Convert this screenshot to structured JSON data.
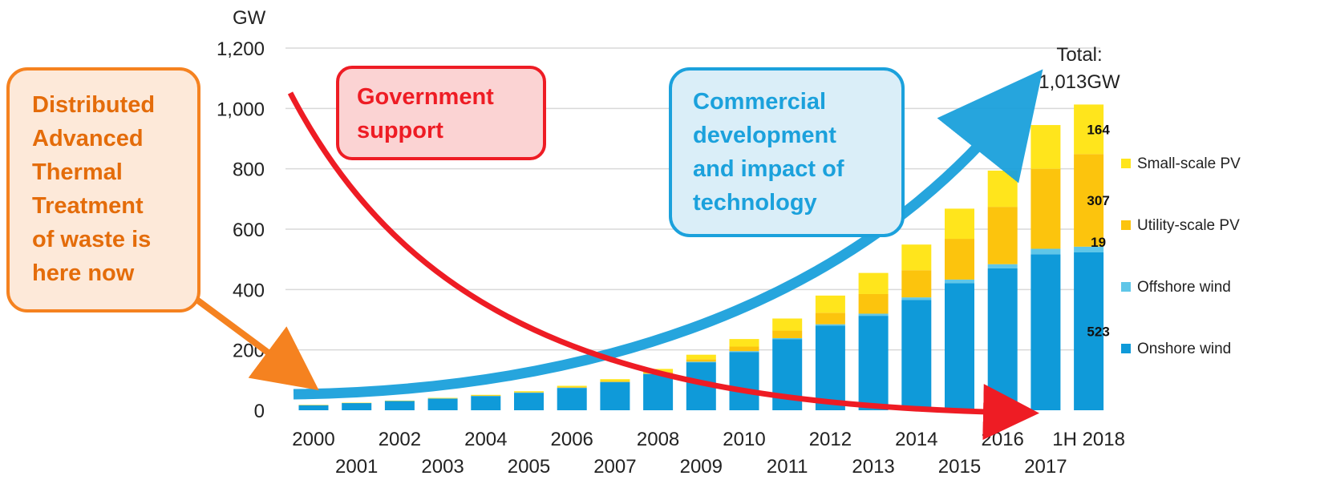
{
  "chart_data": {
    "type": "bar",
    "stacked": true,
    "unit_label": "GW",
    "ylim": [
      0,
      1200
    ],
    "yticks": [
      {
        "value": 0,
        "label": "0"
      },
      {
        "value": 200,
        "label": "200"
      },
      {
        "value": 400,
        "label": "400"
      },
      {
        "value": 600,
        "label": "600"
      },
      {
        "value": 800,
        "label": "800"
      },
      {
        "value": 1000,
        "label": "1,000"
      },
      {
        "value": 1200,
        "label": "1,200"
      }
    ],
    "grid": true,
    "legend_position": "right",
    "categories": [
      "2000",
      "2001",
      "2002",
      "2003",
      "2004",
      "2005",
      "2006",
      "2007",
      "2008",
      "2009",
      "2010",
      "2011",
      "2012",
      "2013",
      "2014",
      "2015",
      "2016",
      "2017",
      "1H 2018"
    ],
    "series": [
      {
        "name": "Onshore wind",
        "color": "#0f9ad9",
        "values": [
          17,
          24,
          31,
          39,
          47,
          58,
          74,
          93,
          120,
          159,
          193,
          235,
          280,
          313,
          365,
          421,
          470,
          517,
          523
        ]
      },
      {
        "name": "Offshore wind",
        "color": "#5fc6e8",
        "values": [
          0,
          0,
          0,
          0,
          1,
          1,
          1,
          1,
          1,
          2,
          3,
          4,
          5,
          7,
          9,
          12,
          14,
          18,
          19
        ]
      },
      {
        "name": "Utility-scale PV",
        "color": "#fcc40d",
        "values": [
          0,
          0,
          0,
          0,
          1,
          1,
          2,
          3,
          6,
          8,
          15,
          25,
          38,
          65,
          90,
          135,
          190,
          265,
          307
        ]
      },
      {
        "name": "Small-scale PV",
        "color": "#ffe51c",
        "values": [
          1,
          1,
          1,
          2,
          2,
          3,
          4,
          6,
          10,
          15,
          25,
          40,
          57,
          70,
          85,
          100,
          120,
          145,
          164
        ]
      }
    ],
    "total_label": "Total:\n1,013GW",
    "data_labels": [
      {
        "category": "1H 2018",
        "series": "Small-scale PV",
        "text": "164"
      },
      {
        "category": "1H 2018",
        "series": "Utility-scale PV",
        "text": "307"
      },
      {
        "category": "1H 2018",
        "series": "Offshore wind",
        "text": "19"
      },
      {
        "category": "1H 2018",
        "series": "Onshore wind",
        "text": "523"
      }
    ]
  },
  "callouts": {
    "distributed": [
      "Distributed",
      "Advanced",
      "Thermal",
      "Treatment",
      "of waste is",
      "here now"
    ],
    "government": [
      "Government",
      "support"
    ],
    "commercial": [
      "Commercial",
      "development",
      "and impact of",
      "technology"
    ]
  },
  "colors": {
    "orange_arrow": "#f58220",
    "red_arrow": "#ee1c24",
    "blue_arrow": "#1ba1dc"
  }
}
